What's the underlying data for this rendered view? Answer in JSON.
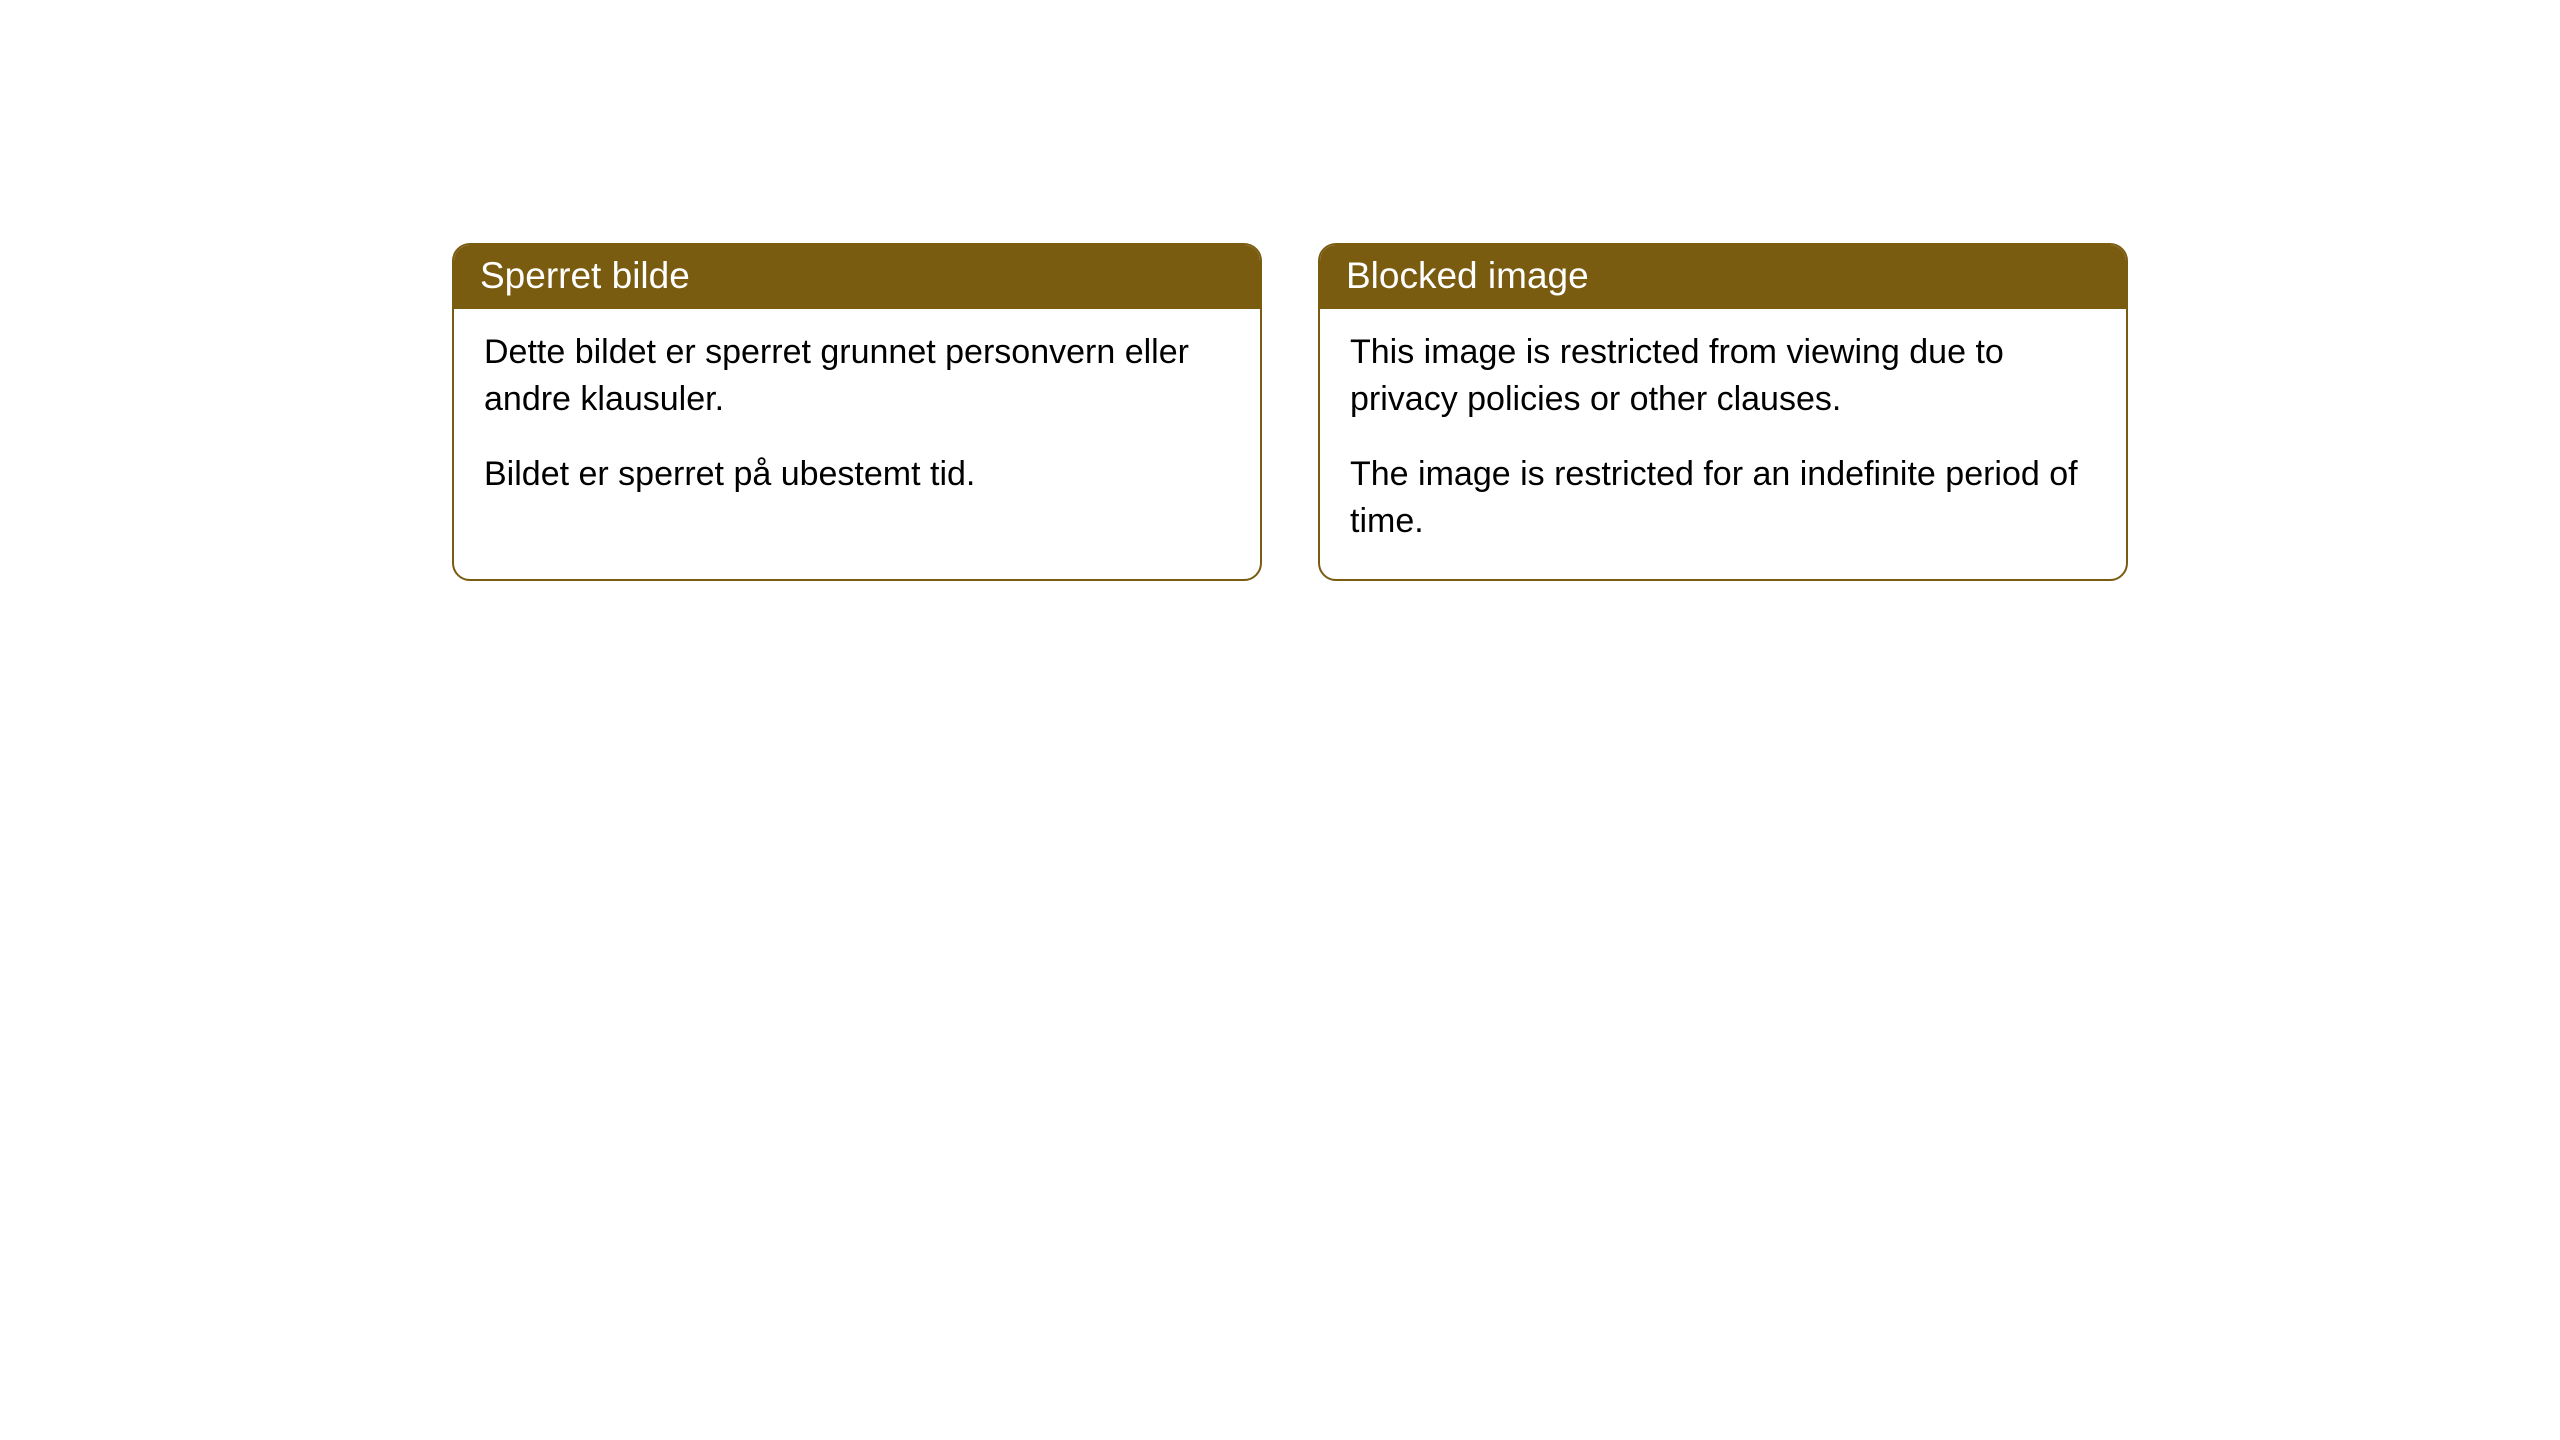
{
  "cards": [
    {
      "title": "Sperret bilde",
      "paragraph1": "Dette bildet er sperret grunnet personvern eller andre klausuler.",
      "paragraph2": "Bildet er sperret på ubestemt tid."
    },
    {
      "title": "Blocked image",
      "paragraph1": "This image is restricted from viewing due to privacy policies or other clauses.",
      "paragraph2": "The image is restricted for an indefinite period of time."
    }
  ],
  "styling": {
    "header_bg_color": "#7a5c11",
    "header_text_color": "#ffffff",
    "border_color": "#7a5c11",
    "border_radius": 18,
    "card_bg_color": "#ffffff",
    "body_text_color": "#000000",
    "header_fontsize": 37,
    "body_fontsize": 34
  }
}
